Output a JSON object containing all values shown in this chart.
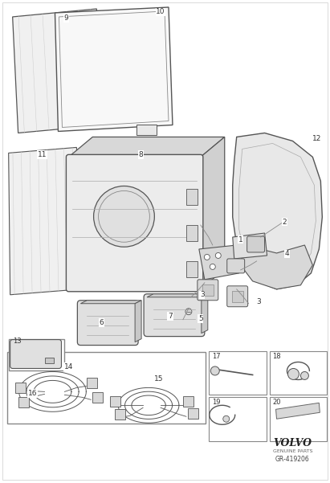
{
  "bg_color": "#ffffff",
  "line_color": "#555555",
  "fig_width": 4.11,
  "fig_height": 6.01,
  "volvo_text": "VOLVO",
  "genuine_parts": "GENUINE PARTS",
  "part_number": "GR-419206"
}
